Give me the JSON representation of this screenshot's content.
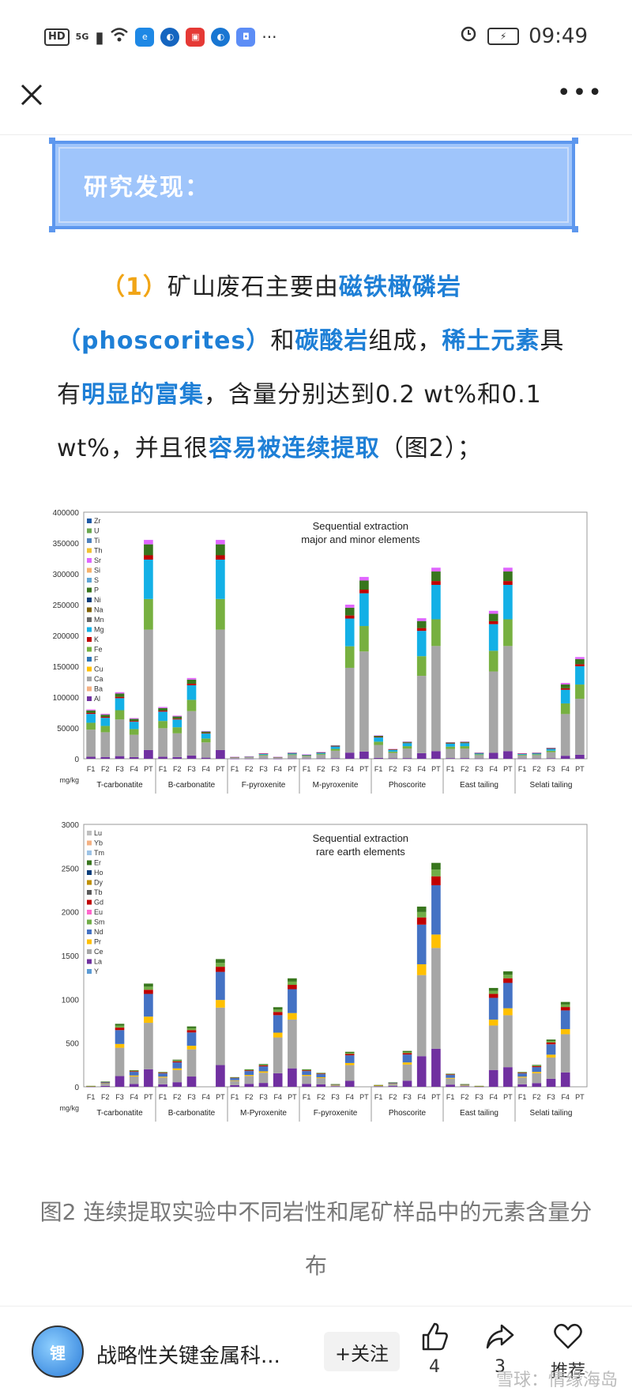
{
  "status_bar": {
    "hd": "HD",
    "signal": "5G",
    "time": "09:49",
    "more": "···"
  },
  "nav": {
    "close_icon": "close-icon",
    "more_icon": "more-icon"
  },
  "banner": {
    "title": "研究发现："
  },
  "paragraph": {
    "num": "（1）",
    "t1": "矿山废石主要由",
    "h1": "磁铁橄磷岩",
    "h2": "（phoscorites）",
    "t2": "和",
    "h3": "碳酸岩",
    "t3": "组成，",
    "h4": "稀土元素",
    "t4": "具有",
    "h5": "明显的富集",
    "t5": "，含量分别达到0.2 wt%和0.1 wt%，并且很",
    "h6": "容易被连续提取",
    "t6": "（图2）；"
  },
  "caption": "图2 连续提取实验中不同岩性和尾矿样品中的元素含量分布",
  "footer": {
    "account_name": "战略性关键金属科...",
    "follow_label": "+关注",
    "like_count": "4",
    "share_count": "3",
    "recommend_label": "推荐",
    "watermark": "雪球：情缘海岛"
  },
  "chart_data": [
    {
      "type": "bar",
      "title": "Sequential extraction\nmajor and minor elements",
      "ylabel": "mg/kg",
      "ylim": [
        0,
        400000
      ],
      "yticks": [
        0,
        50000,
        100000,
        150000,
        200000,
        250000,
        300000,
        350000,
        400000
      ],
      "groups": [
        "T-carbonatite",
        "B-carbonatite",
        "F-pyroxenite",
        "M-pyroxenite",
        "Phoscorite",
        "East tailing",
        "Selati tailing"
      ],
      "subcategories": [
        "F1",
        "F2",
        "F3",
        "F4",
        "PT"
      ],
      "legend": [
        "Zr",
        "U",
        "Ti",
        "Th",
        "Sr",
        "Si",
        "S",
        "P",
        "Ni",
        "Na",
        "Mn",
        "Mg",
        "K",
        "Fe",
        "F",
        "Cu",
        "Ca",
        "Ba",
        "Al"
      ],
      "totals": [
        [
          80000,
          73000,
          108000,
          66000,
          355000
        ],
        [
          84000,
          70000,
          131000,
          45000,
          355000
        ],
        [
          3000,
          4000,
          9000,
          3000,
          10000
        ],
        [
          7000,
          11000,
          22000,
          250000,
          295000
        ],
        [
          38000,
          16000,
          28000,
          228000,
          310000
        ],
        [
          27000,
          28000,
          10000,
          240000,
          310000
        ],
        [
          9000,
          10000,
          18000,
          123000,
          165000
        ]
      ]
    },
    {
      "type": "bar",
      "title": "Sequential extraction\nrare earth elements",
      "ylabel": "mg/kg",
      "ylim": [
        0,
        3000
      ],
      "yticks": [
        0,
        500,
        1000,
        1500,
        2000,
        2500,
        3000
      ],
      "groups": [
        "T-carbonatite",
        "B-carbonatite",
        "M-Pyroxenite",
        "F-pyroxenite",
        "Phoscorite",
        "East tailing",
        "Selati tailing"
      ],
      "subcategories": [
        "F1",
        "F2",
        "F3",
        "F4",
        "PT"
      ],
      "legend": [
        "Lu",
        "Yb",
        "Tm",
        "Er",
        "Ho",
        "Dy",
        "Tb",
        "Gd",
        "Eu",
        "Sm",
        "Nd",
        "Pr",
        "Ce",
        "La",
        "Y"
      ],
      "totals": [
        [
          10,
          60,
          720,
          190,
          1180
        ],
        [
          170,
          310,
          690,
          0,
          1460
        ],
        [
          110,
          200,
          260,
          910,
          1240
        ],
        [
          200,
          160,
          30,
          400,
          0
        ],
        [
          20,
          50,
          410,
          2060,
          2560
        ],
        [
          150,
          30,
          10,
          1130,
          1320
        ],
        [
          170,
          250,
          540,
          970,
          0
        ]
      ]
    }
  ]
}
